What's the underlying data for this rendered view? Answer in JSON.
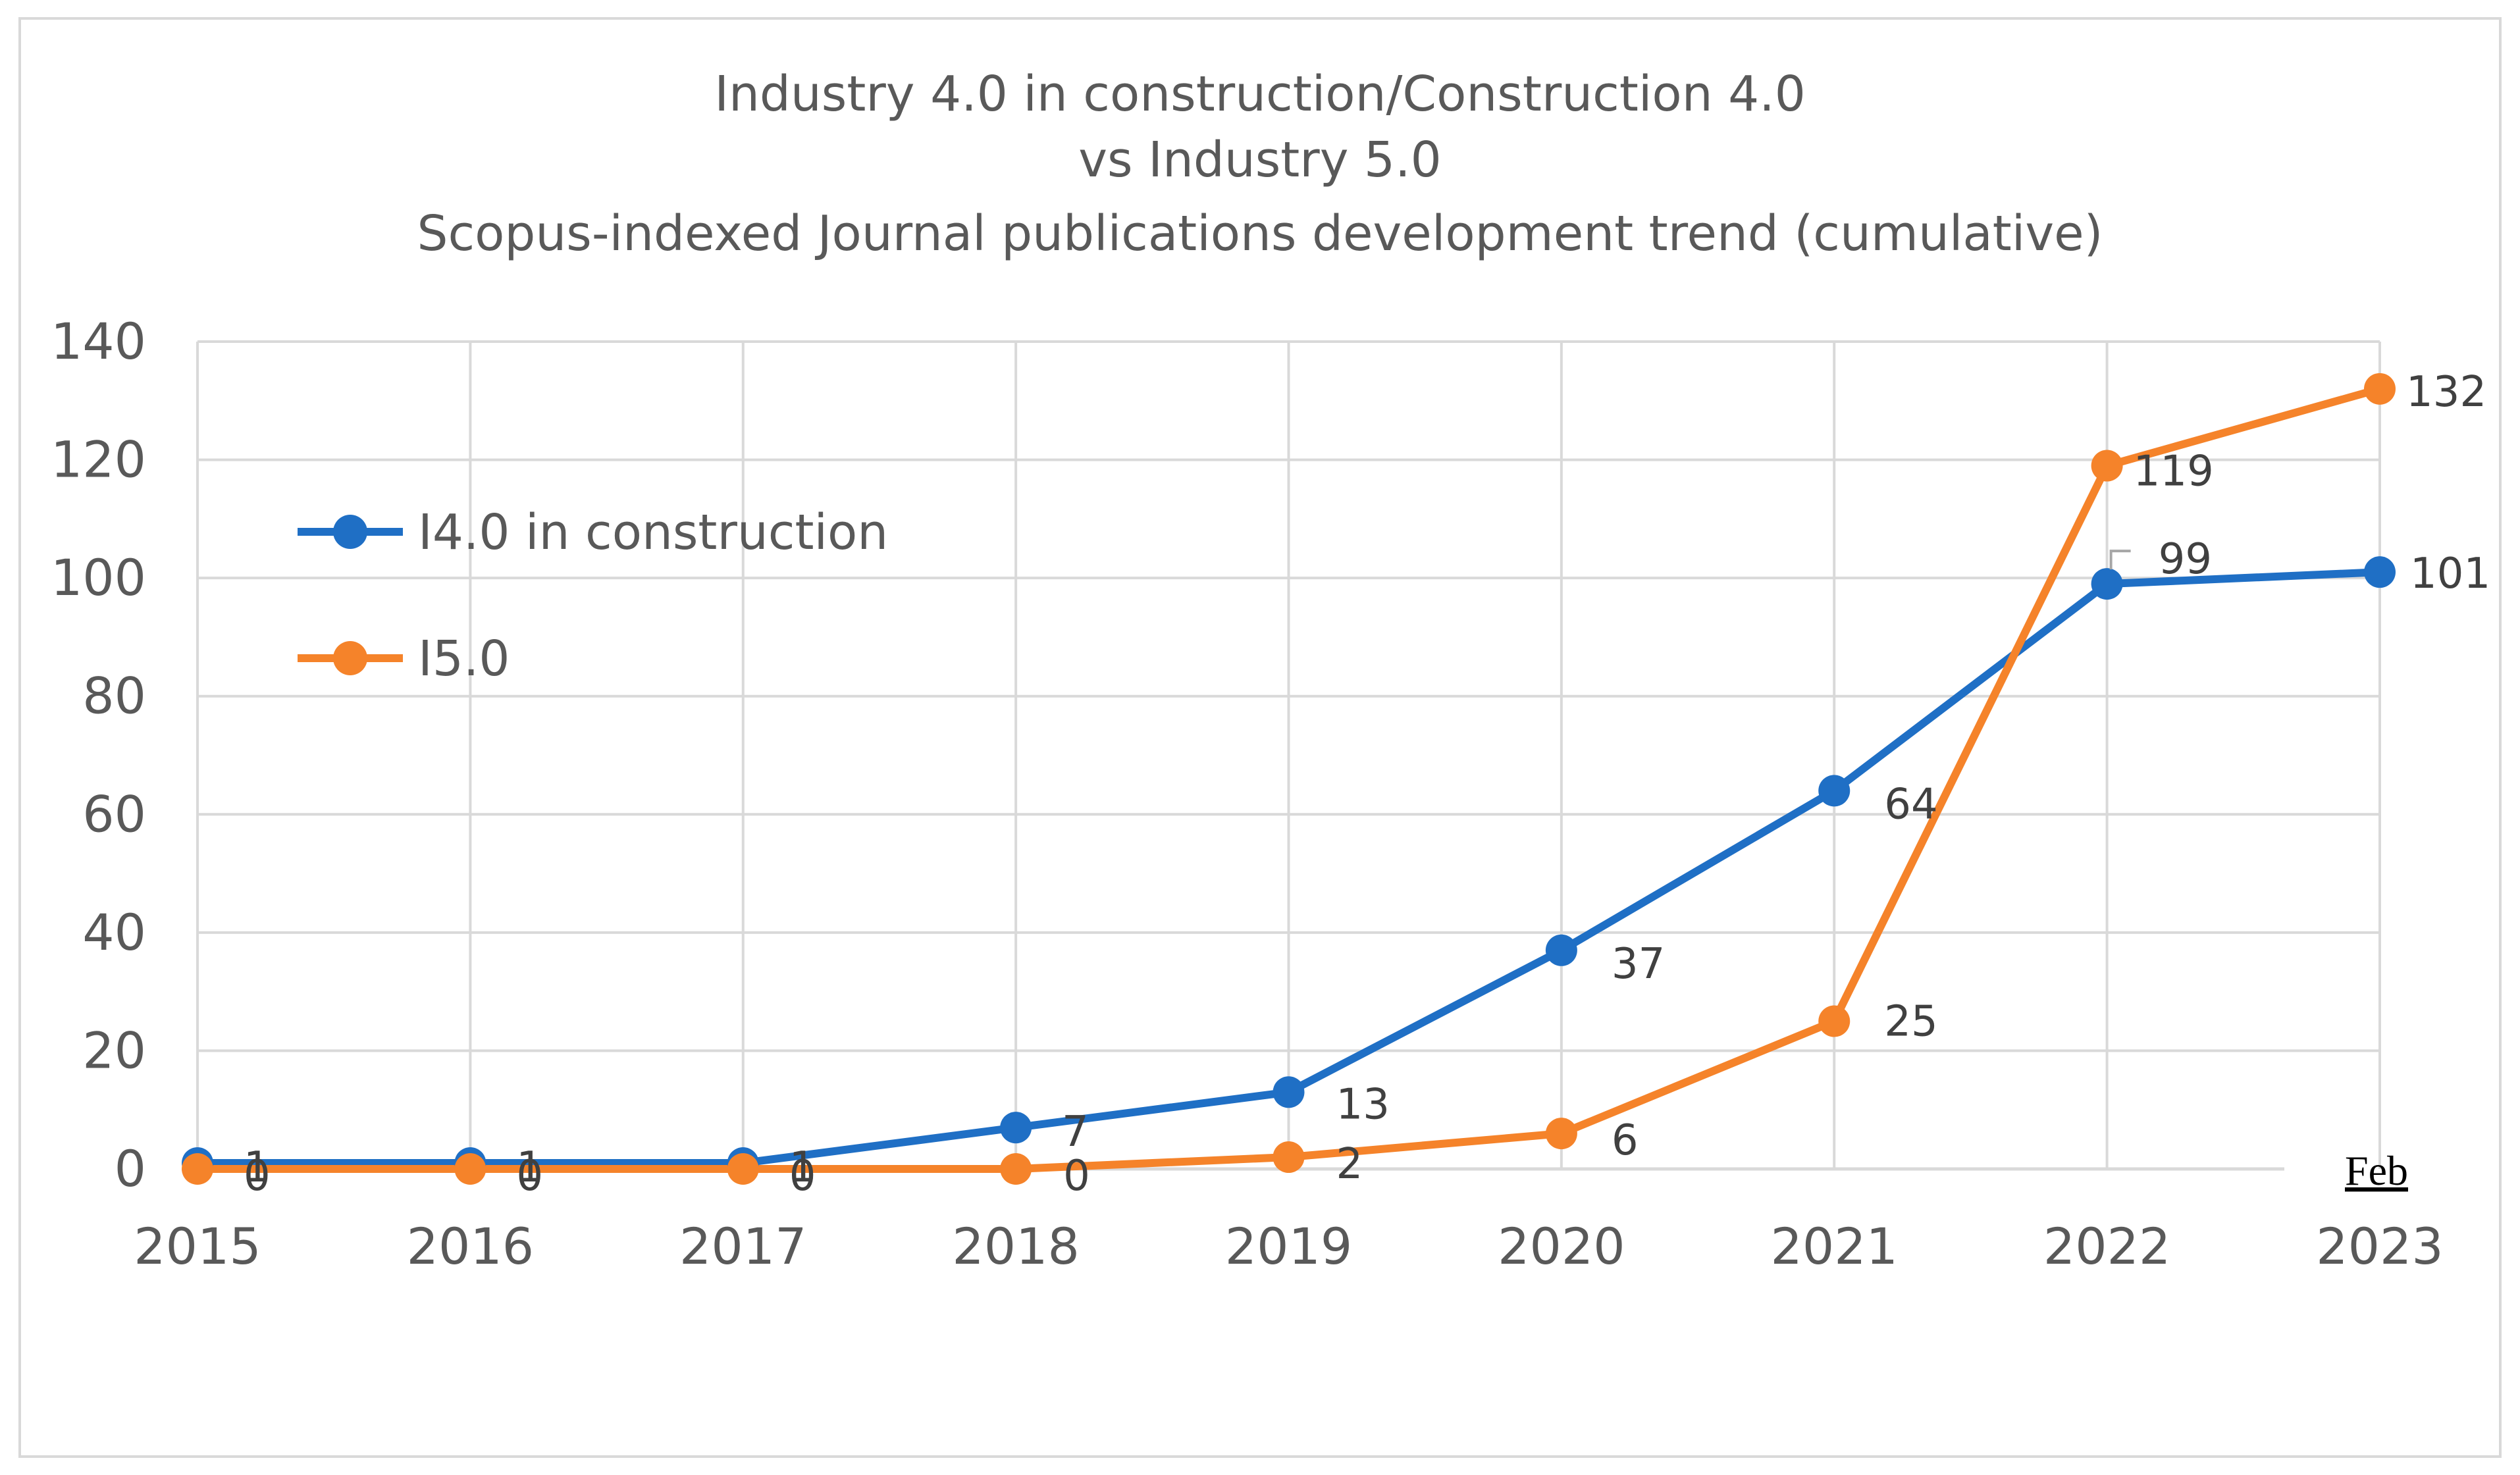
{
  "chart_data": {
    "type": "line",
    "title": [
      "Industry 4.0 in construction/Construction 4.0",
      "vs Industry 5.0",
      "Scopus-indexed Journal publications development trend (cumulative)"
    ],
    "categories": [
      "2015",
      "2016",
      "2017",
      "2018",
      "2019",
      "2020",
      "2021",
      "2022",
      "2023"
    ],
    "series": [
      {
        "name": "I4.0 in construction",
        "color": "#1F6FC5",
        "values": [
          1,
          1,
          1,
          7,
          13,
          37,
          64,
          99,
          101
        ]
      },
      {
        "name": "I5.0",
        "color": "#F5832A",
        "values": [
          0,
          0,
          0,
          0,
          2,
          6,
          25,
          119,
          132
        ]
      }
    ],
    "ylim": [
      0,
      140
    ],
    "yticks": [
      0,
      20,
      40,
      60,
      80,
      100,
      120,
      140
    ],
    "grid": true,
    "legend": "top-left",
    "annotation": "Feb",
    "xlabel": "",
    "ylabel": ""
  }
}
